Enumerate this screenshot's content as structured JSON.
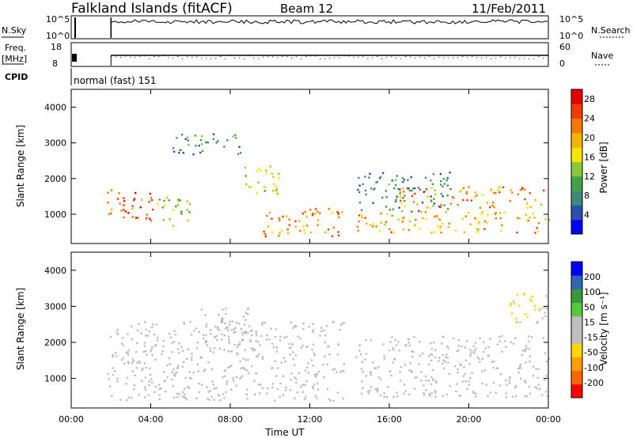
{
  "header": {
    "station": "Falkland Islands (fitACF)",
    "beam": "Beam 12",
    "date": "11/Feb/2011"
  },
  "summary_panels": {
    "nsky": {
      "label": "N.Sky",
      "ticks": [
        "10^5",
        "10^0"
      ]
    },
    "nsearch": {
      "label": "N.Search",
      "ticks": [
        "10^5",
        "10^0"
      ]
    },
    "freq": {
      "label_line1": "Freq.",
      "label_line2": "[MHz]",
      "ticks": [
        "18",
        "8"
      ]
    },
    "nave": {
      "label": "Nave",
      "ticks": [
        "60",
        "0"
      ]
    },
    "cpid": {
      "label": "CPID",
      "value": "normal (fast) 151"
    }
  },
  "colors": {
    "power_scale": [
      "#0000ff",
      "#2a4faf",
      "#3c8a78",
      "#46a046",
      "#8cc83c",
      "#f5e600",
      "#f5b400",
      "#f57800",
      "#f03c00",
      "#e60000"
    ],
    "velocity_scale": [
      "#ff0000",
      "#ff6400",
      "#ffa000",
      "#ffd700",
      "#bebebe",
      "#bebebe",
      "#55c83c",
      "#3c963c",
      "#3264b4",
      "#0000ff"
    ]
  },
  "chart_data": [
    {
      "type": "heatmap",
      "panel": "power",
      "xlabel": "Time UT",
      "ylabel": "Slant Range [km]",
      "xlim": [
        0,
        24
      ],
      "ylim": [
        180,
        4500
      ],
      "y_ticks": [
        "1000",
        "2000",
        "3000",
        "4000"
      ],
      "x_ticks": [
        "00:00",
        "04:00",
        "08:00",
        "12:00",
        "16:00",
        "20:00",
        "00:00"
      ],
      "colorbar": {
        "label": "Power [dB]",
        "ticks": [
          "4",
          "8",
          "12",
          "16",
          "20",
          "24",
          "28"
        ],
        "range": [
          0,
          30
        ]
      },
      "echo_regions": [
        {
          "t0": 1.8,
          "t1": 4.2,
          "r0": 800,
          "r1": 1700,
          "value": 24
        },
        {
          "t0": 4.2,
          "t1": 6.0,
          "r0": 700,
          "r1": 1500,
          "value": 14
        },
        {
          "t0": 5.0,
          "t1": 8.5,
          "r0": 2700,
          "r1": 3300,
          "value": 8
        },
        {
          "t0": 8.5,
          "t1": 10.5,
          "r0": 1600,
          "r1": 2400,
          "value": 16
        },
        {
          "t0": 9.5,
          "t1": 14.0,
          "r0": 400,
          "r1": 1200,
          "value": 22
        },
        {
          "t0": 14.3,
          "t1": 24.0,
          "r0": 500,
          "r1": 1100,
          "value": 20
        },
        {
          "t0": 16.5,
          "t1": 24.0,
          "r0": 1200,
          "r1": 1800,
          "value": 22
        },
        {
          "t0": 14.3,
          "t1": 19.0,
          "r0": 1100,
          "r1": 2200,
          "value": 8
        }
      ]
    },
    {
      "type": "heatmap",
      "panel": "velocity",
      "xlabel": "Time UT",
      "ylabel": "Slant Range [km]",
      "xlim": [
        0,
        24
      ],
      "ylim": [
        180,
        4500
      ],
      "y_ticks": [
        "1000",
        "2000",
        "3000",
        "4000"
      ],
      "x_ticks": [
        "00:00",
        "04:00",
        "08:00",
        "12:00",
        "16:00",
        "20:00",
        "00:00"
      ],
      "colorbar": {
        "label": "Velocity [m s⁻¹]",
        "ticks": [
          "200",
          "100",
          "50",
          "15",
          "-15",
          "-50",
          "-100",
          "-200"
        ],
        "range": [
          -250,
          250
        ]
      },
      "echo_regions": [
        {
          "t0": 1.8,
          "t1": 14.0,
          "r0": 400,
          "r1": 2600,
          "value": 0
        },
        {
          "t0": 6.5,
          "t1": 9.0,
          "r0": 2000,
          "r1": 3000,
          "value": 30
        },
        {
          "t0": 14.3,
          "t1": 24.0,
          "r0": 500,
          "r1": 2200,
          "value": 0
        },
        {
          "t0": 22.0,
          "t1": 24.0,
          "r0": 2500,
          "r1": 3400,
          "value": -60
        }
      ]
    }
  ],
  "time_series": {
    "data_gap": [
      13.7,
      14.2
    ],
    "nsky_start_hour": 2.0,
    "freq_start_hour": 2.0
  }
}
